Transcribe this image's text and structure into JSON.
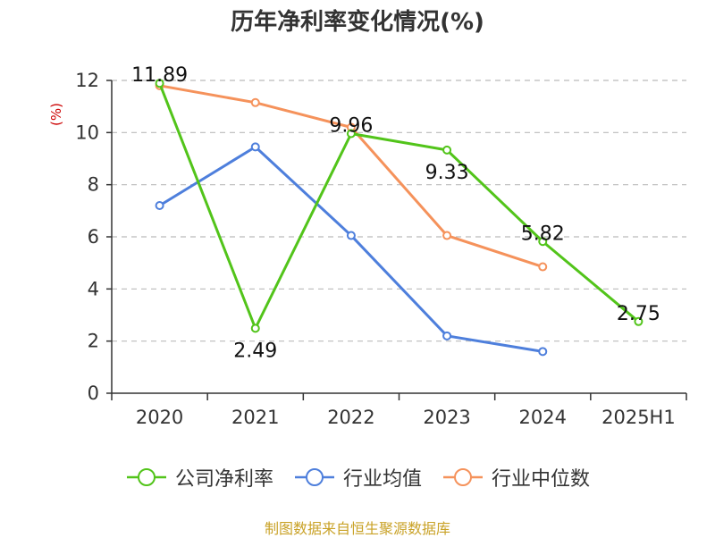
{
  "chart_data": {
    "type": "line",
    "title": "历年净利率变化情况(%)",
    "ylabel": "(%)",
    "categories": [
      "2020",
      "2021",
      "2022",
      "2023",
      "2024",
      "2025H1"
    ],
    "ylim": [
      0,
      12
    ],
    "yticks": [
      0,
      2,
      4,
      6,
      8,
      10,
      12
    ],
    "grid": true,
    "legend_position": "bottom",
    "series": [
      {
        "name": "公司净利率",
        "color": "#52c41a",
        "values": [
          11.89,
          2.49,
          9.96,
          9.33,
          5.82,
          2.75
        ],
        "labels": [
          "11.89",
          "2.49",
          "9.96",
          "9.33",
          "5.82",
          "2.75"
        ]
      },
      {
        "name": "行业均值",
        "color": "#4e7fdc",
        "values": [
          7.2,
          9.45,
          6.05,
          2.2,
          1.6,
          null
        ]
      },
      {
        "name": "行业中位数",
        "color": "#f5925b",
        "values": [
          11.8,
          11.15,
          10.2,
          6.05,
          4.85,
          null
        ]
      }
    ]
  },
  "source": "制图数据来自恒生聚源数据库"
}
